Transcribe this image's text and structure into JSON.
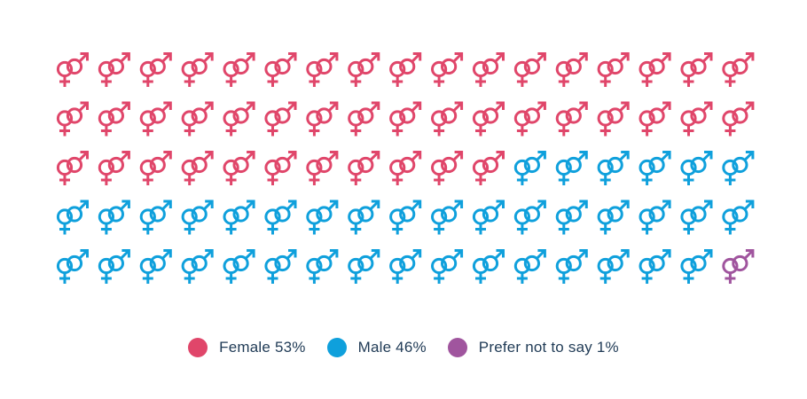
{
  "chart_data": {
    "type": "pictogram",
    "icon": "gender-symbol-icon",
    "rows": 5,
    "columns": 17,
    "total_icons": 85,
    "categories": [
      {
        "label": "Female 53%",
        "name": "Female",
        "percent": 53,
        "icon_count": 45,
        "color": "#e0466a"
      },
      {
        "label": "Male 46%",
        "name": "Male",
        "percent": 46,
        "icon_count": 39,
        "color": "#0fa0dc"
      },
      {
        "label": "Prefer not to say 1%",
        "name": "Prefer not to say",
        "percent": 1,
        "icon_count": 1,
        "color": "#a0559e"
      }
    ],
    "legend_position": "bottom-center"
  }
}
